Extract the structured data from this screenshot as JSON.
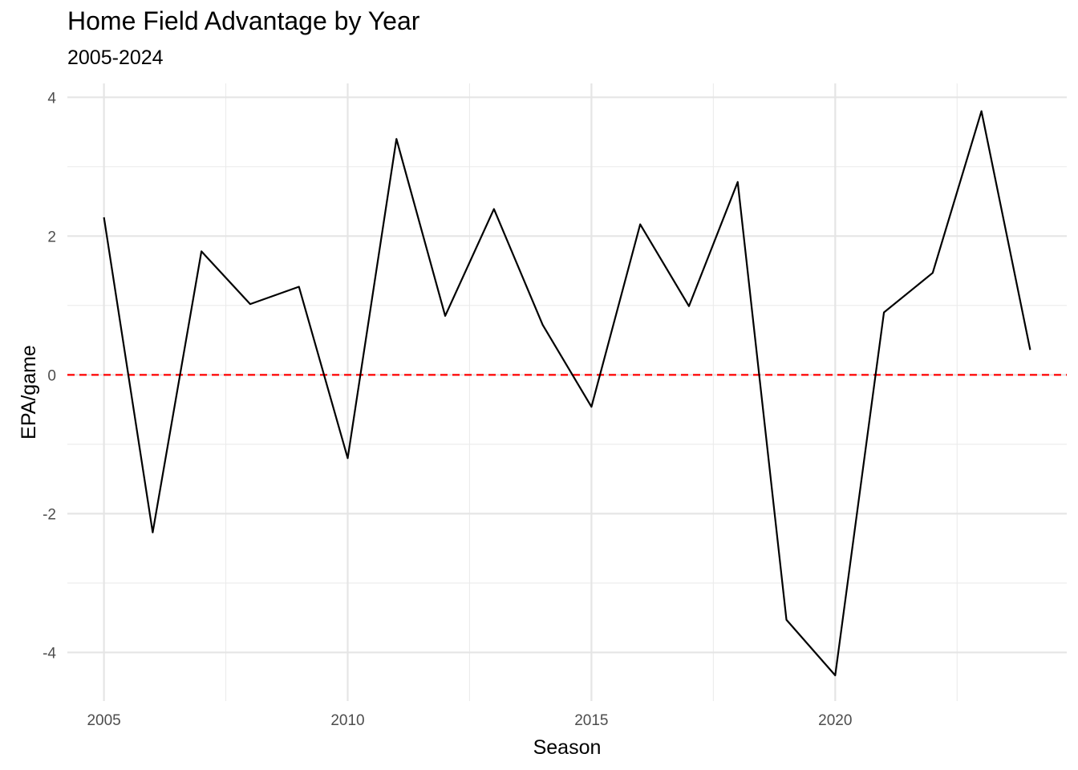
{
  "chart_data": {
    "type": "line",
    "title": "Home Field Advantage by Year",
    "subtitle": "2005-2024",
    "xlabel": "Season",
    "ylabel": "EPA/game",
    "xlim": [
      2004.25,
      2024.75
    ],
    "ylim": [
      -4.7,
      4.2
    ],
    "x_ticks": [
      2005,
      2010,
      2015,
      2020
    ],
    "y_ticks": [
      -4,
      -2,
      0,
      2,
      4
    ],
    "x_minor": [
      2007.5,
      2012.5,
      2017.5,
      2022.5
    ],
    "y_minor": [
      -3,
      -1,
      1,
      3
    ],
    "grid": true,
    "reference_line": {
      "y": 0,
      "color": "#ff0000",
      "style": "dashed"
    },
    "series": [
      {
        "color": "#000000",
        "x": [
          2005,
          2006,
          2007,
          2008,
          2009,
          2010,
          2011,
          2012,
          2013,
          2014,
          2015,
          2016,
          2017,
          2018,
          2019,
          2020,
          2021,
          2022,
          2023,
          2024
        ],
        "y": [
          2.27,
          -2.27,
          1.78,
          1.02,
          1.27,
          -1.2,
          3.4,
          0.85,
          2.39,
          0.72,
          -0.46,
          2.17,
          0.99,
          2.78,
          -3.53,
          -4.33,
          0.9,
          1.47,
          3.8,
          0.36
        ]
      }
    ]
  }
}
